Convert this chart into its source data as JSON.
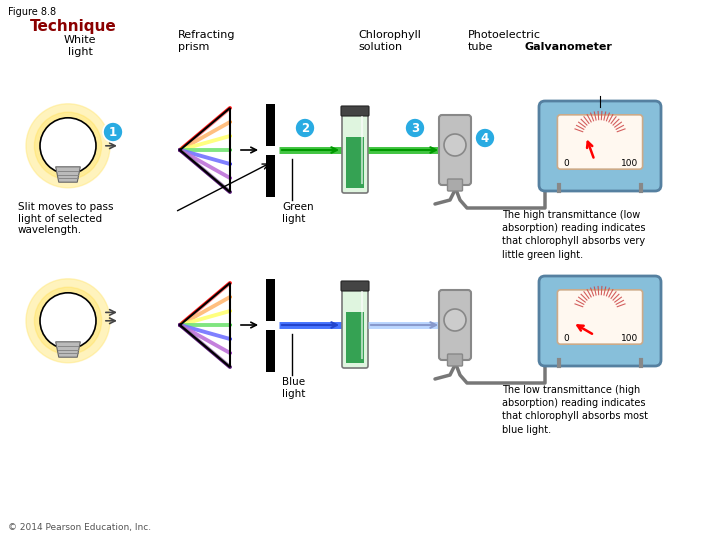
{
  "figure_label": "Figure 8.8",
  "title": "Technique",
  "title_color": "#8B0000",
  "bg_color": "#ffffff",
  "labels": {
    "white_light": "White\nlight",
    "refracting_prism": "Refracting\nprism",
    "chlorophyll_solution": "Chlorophyll\nsolution",
    "photoelectric_tube": "Photoelectric\ntube",
    "galvanometer": "Galvanometer",
    "slit_moves": "Slit moves to pass\nlight of selected\nwavelength.",
    "green_light": "Green\nlight",
    "blue_light": "Blue\nlight",
    "high_trans_text": "The high transmittance (low\nabsorption) reading indicates\nthat chlorophyll absorbs very\nlittle green light.",
    "low_trans_text": "The low transmittance (high\nabsorption) reading indicates\nthat chlorophyll absorbs most\nblue light.",
    "copyright": "© 2014 Pearson Education, Inc.",
    "step1": "1",
    "step2": "2",
    "step3": "3",
    "step4": "4"
  },
  "step_circle_color": "#29ABE2",
  "step_text_color": "#ffffff",
  "prism_colors": [
    "#FF0000",
    "#FF7F00",
    "#FFFF00",
    "#00CC00",
    "#0000FF",
    "#8800BB",
    "#440066"
  ],
  "fan_colors_top": [
    "#FF0000",
    "#FF7F00",
    "#FFFF00",
    "#00CC00",
    "#0000FF",
    "#8800BB",
    "#440066"
  ],
  "fan_colors_bot": [
    "#FF0000",
    "#FF7F00",
    "#FFFF00",
    "#00CC00",
    "#0000FF",
    "#8800BB",
    "#440066"
  ]
}
